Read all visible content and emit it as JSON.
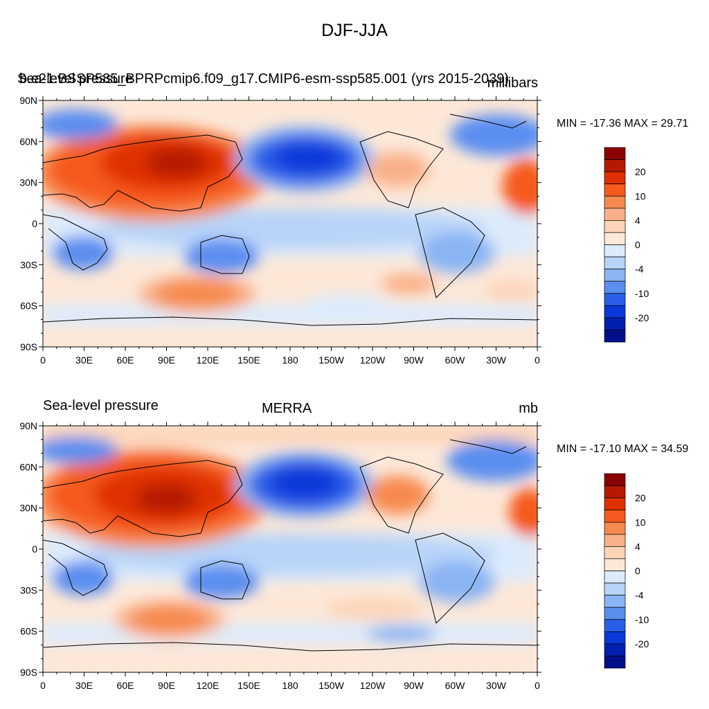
{
  "main_title": "DJF-JJA",
  "panels": [
    {
      "left_title": "Sea-level pressure",
      "center_title": "b.e21.BSSP585_BPRPcmip6.f09_g17.CMIP6-esm-ssp585.001 (yrs 2015-2039)",
      "right_title": "millibars",
      "minmax": "MIN = -17.36 MAX =  29.71"
    },
    {
      "left_title": "Sea-level pressure",
      "center_title": "MERRA",
      "right_title": "mb",
      "minmax": "MIN = -17.10 MAX =  34.59"
    }
  ],
  "lat_labels": [
    "90N",
    "60N",
    "30N",
    "0",
    "30S",
    "60S",
    "90S"
  ],
  "lon_labels": [
    "0",
    "30E",
    "60E",
    "90E",
    "120E",
    "150E",
    "180",
    "150W",
    "120W",
    "90W",
    "60W",
    "30W",
    "0"
  ],
  "colorbar": {
    "labels": [
      "20",
      "10",
      "4",
      "0",
      "-4",
      "-10",
      "-20"
    ],
    "colors": [
      "#8b0000",
      "#b51a00",
      "#e03000",
      "#f55a1e",
      "#f78a50",
      "#f9b088",
      "#fdd4b8",
      "#fde8d8",
      "#dcebfc",
      "#b8d4f8",
      "#8ab4f4",
      "#5a8ef0",
      "#2a5ee8",
      "#0a38d8",
      "#0020b0",
      "#00108a"
    ]
  },
  "land_color": "#000000"
}
